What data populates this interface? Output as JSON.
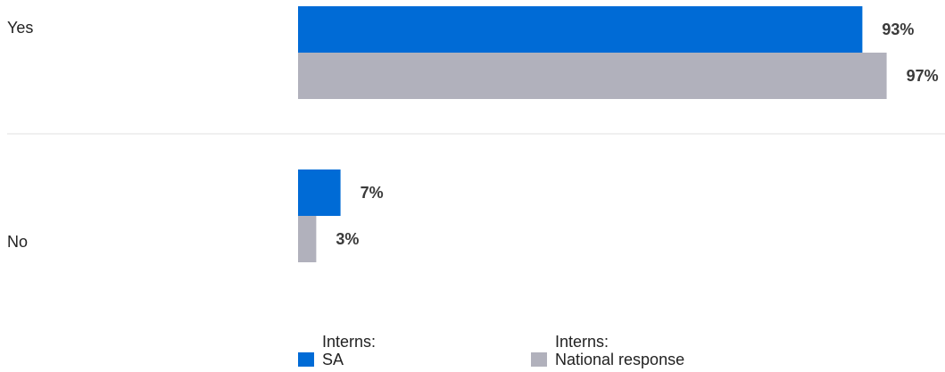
{
  "chart_data": {
    "type": "bar",
    "orientation": "horizontal",
    "categories": [
      "Yes",
      "No"
    ],
    "series": [
      {
        "name": "Interns:\nSA",
        "values": [
          93,
          7
        ],
        "color": "#006bd6"
      },
      {
        "name": "Interns:\nNational response",
        "values": [
          97,
          3
        ],
        "color": "#b1b1bc"
      }
    ],
    "value_labels": [
      [
        "93%",
        "7%"
      ],
      [
        "97%",
        "3%"
      ]
    ],
    "unit": "%",
    "xlim": [
      0,
      100
    ],
    "grid": false,
    "separator_between_categories": true,
    "legend_position": "bottom"
  },
  "legend": [
    {
      "line1": "Interns:",
      "line2": "SA",
      "color": "#006bd6"
    },
    {
      "line1": "Interns:",
      "line2": "National response",
      "color": "#b1b1bc"
    }
  ],
  "colors": {
    "separator": "#e2e2e2",
    "text": "#222222",
    "value_text": "#3a3a3a"
  }
}
